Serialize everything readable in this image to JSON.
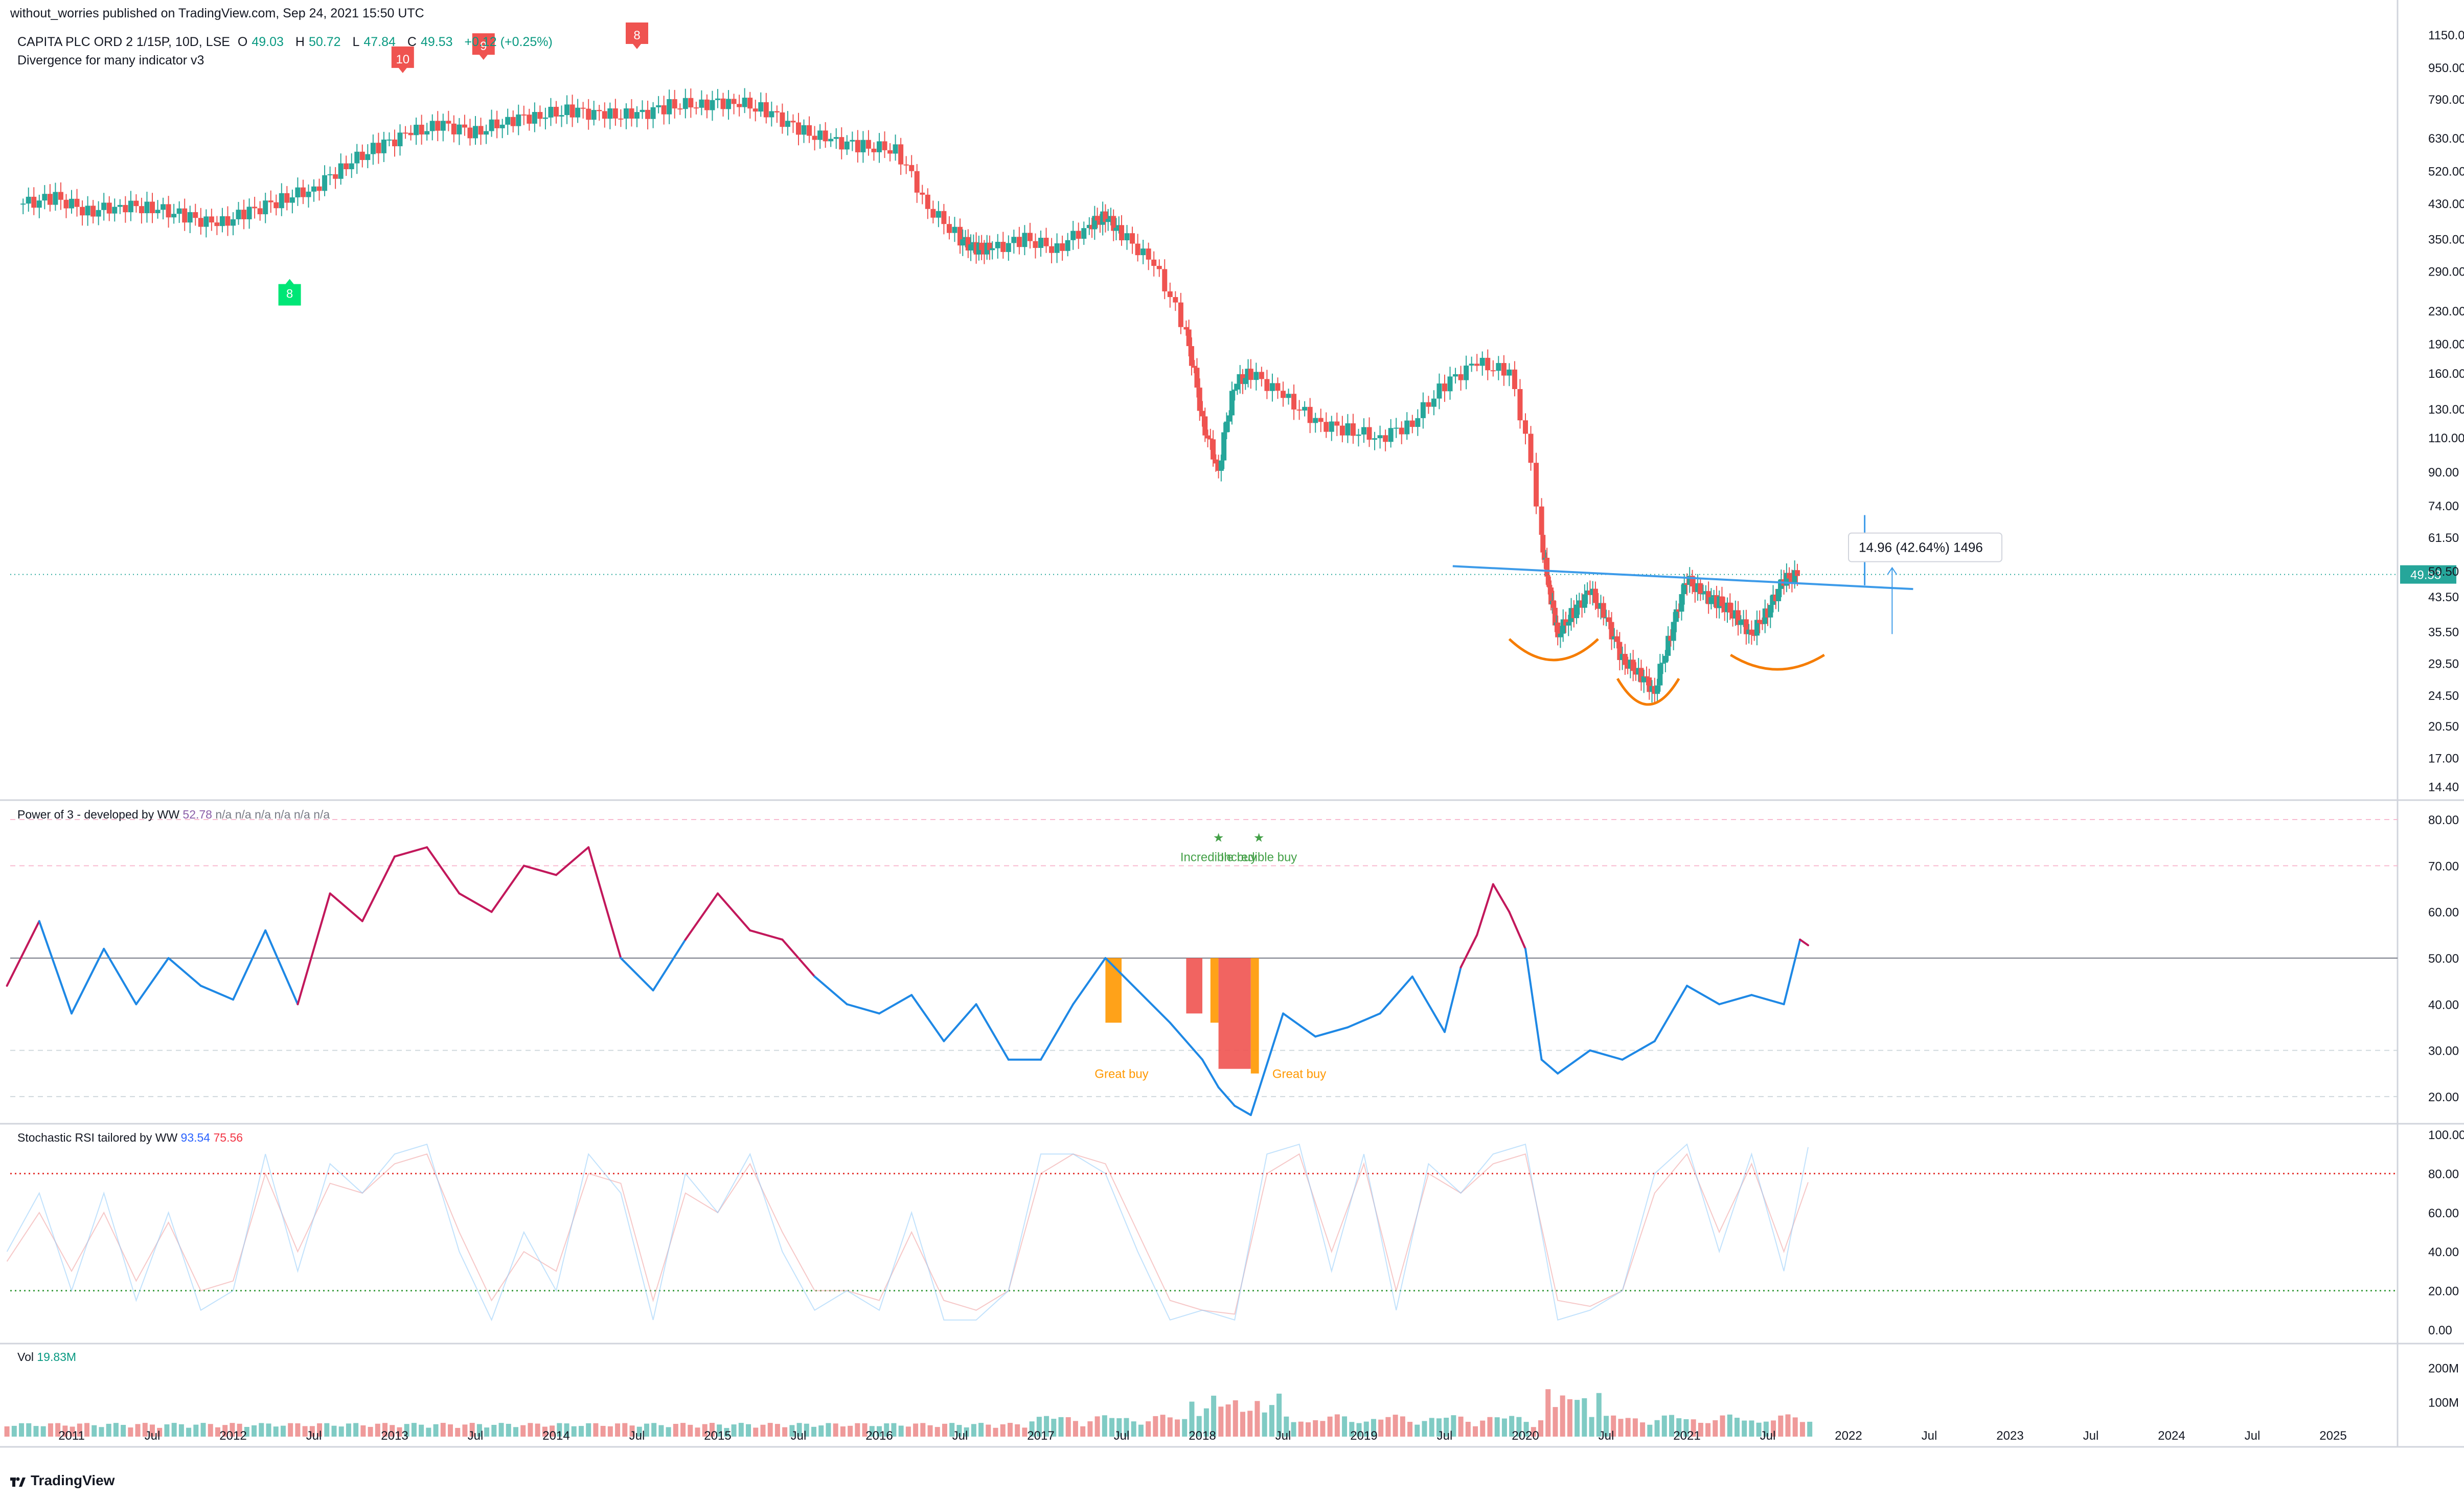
{
  "header": {
    "published": "without_worries published on TradingView.com, Sep 24, 2021 15:50 UTC",
    "symbol": "CAPITA PLC ORD 2 1/15P, 10D, LSE",
    "ohlc": {
      "o_label": "O",
      "o": "49.03",
      "h_label": "H",
      "h": "50.72",
      "l_label": "L",
      "l": "47.84",
      "c_label": "C",
      "c": "49.53",
      "change": "+0.12 (+0.25%)"
    },
    "indicator": "Divergence for many indicator v3"
  },
  "colors": {
    "up": "#26a69a",
    "down": "#ef5350",
    "price_line": "#3d9be9",
    "orange": "#f57c00",
    "great_buy": "#ff9800",
    "incredible_buy": "#43a047",
    "rsi_blue": "#1e88e5",
    "rsi_red": "#c0392b"
  },
  "chart_data": [
    {
      "type": "candlestick",
      "pane": "price",
      "scale": "log",
      "x_axis": [
        "2011",
        "Jul",
        "2012",
        "Jul",
        "2013",
        "Jul",
        "2014",
        "Jul",
        "2015",
        "Jul",
        "2016",
        "Jul",
        "2017",
        "Jul",
        "2018",
        "Jul",
        "2019",
        "Jul",
        "2020",
        "Jul",
        "2021",
        "Jul",
        "2022",
        "Jul",
        "2023",
        "Jul",
        "2024",
        "Jul",
        "2025"
      ],
      "y_ticks": [
        "1150.00",
        "950.00",
        "790.00",
        "630.00",
        "520.00",
        "430.00",
        "350.00",
        "290.00",
        "230.00",
        "190.00",
        "160.00",
        "130.00",
        "110.00",
        "90.00",
        "74.00",
        "61.50",
        "50.50",
        "43.50",
        "35.50",
        "29.50",
        "24.50",
        "20.50",
        "17.00",
        "14.40"
      ],
      "ylim": [
        13.5,
        1250
      ],
      "last_price_label": "49.53",
      "x": [
        2010.7,
        2010.9,
        2011.1,
        2011.3,
        2011.5,
        2011.7,
        2011.9,
        2012.1,
        2012.3,
        2012.5,
        2012.7,
        2012.9,
        2013.1,
        2013.3,
        2013.5,
        2013.7,
        2013.9,
        2014.1,
        2014.3,
        2014.5,
        2014.7,
        2014.9,
        2015.1,
        2015.3,
        2015.5,
        2015.7,
        2015.9,
        2016.1,
        2016.3,
        2016.5,
        2016.6,
        2016.7,
        2016.9,
        2017.1,
        2017.3,
        2017.4,
        2017.5,
        2017.7,
        2017.9,
        2018.0,
        2018.1,
        2018.2,
        2018.3,
        2018.5,
        2018.7,
        2018.9,
        2019.1,
        2019.3,
        2019.5,
        2019.7,
        2019.9,
        2020.1,
        2020.15,
        2020.2,
        2020.3,
        2020.4,
        2020.5,
        2020.6,
        2020.7,
        2020.8,
        2020.9,
        2021.0,
        2021.1,
        2021.2,
        2021.3,
        2021.4,
        2021.5,
        2021.6,
        2021.7
      ],
      "close": [
        430,
        445,
        410,
        425,
        420,
        400,
        380,
        410,
        440,
        470,
        540,
        600,
        650,
        680,
        650,
        700,
        720,
        740,
        720,
        720,
        760,
        770,
        780,
        740,
        660,
        620,
        600,
        590,
        420,
        350,
        330,
        330,
        350,
        330,
        380,
        400,
        360,
        300,
        200,
        120,
        90,
        150,
        160,
        140,
        120,
        115,
        110,
        120,
        150,
        170,
        160,
        60,
        45,
        35,
        40,
        45,
        38,
        30,
        28,
        25,
        35,
        48,
        44,
        42,
        39,
        35,
        40,
        48,
        49.53
      ]
    },
    {
      "type": "line",
      "pane": "power_of_3",
      "title": "Power of 3 - developed by WW",
      "y_ticks": [
        "80.00",
        "70.00",
        "60.00",
        "50.00",
        "40.00",
        "30.00",
        "20.00"
      ],
      "ylim": [
        15,
        82
      ],
      "reference_line": 50,
      "dashed_lines": [
        80,
        70,
        30,
        20
      ],
      "current_value": "52.78",
      "na_values": [
        "n/a",
        "n/a",
        "n/a",
        "n/a",
        "n/a",
        "n/a"
      ],
      "annotations": [
        {
          "text": "Great buy",
          "x": 2017.5,
          "y": 24
        },
        {
          "text": "Great buy",
          "x": 2018.6,
          "y": 24
        },
        {
          "text": "Incredible buy",
          "x": 2018.1,
          "y": 71
        },
        {
          "text": "Incredible buy",
          "x": 2018.35,
          "y": 71
        }
      ],
      "x": [
        2010.6,
        2010.8,
        2011.0,
        2011.2,
        2011.4,
        2011.6,
        2011.8,
        2012.0,
        2012.2,
        2012.4,
        2012.6,
        2012.8,
        2013.0,
        2013.2,
        2013.4,
        2013.6,
        2013.8,
        2014.0,
        2014.2,
        2014.4,
        2014.6,
        2014.8,
        2015.0,
        2015.2,
        2015.4,
        2015.6,
        2015.8,
        2016.0,
        2016.2,
        2016.4,
        2016.6,
        2016.8,
        2017.0,
        2017.2,
        2017.4,
        2017.6,
        2017.8,
        2018.0,
        2018.1,
        2018.2,
        2018.3,
        2018.5,
        2018.7,
        2018.9,
        2019.1,
        2019.3,
        2019.5,
        2019.6,
        2019.7,
        2019.8,
        2019.9,
        2020.0,
        2020.1,
        2020.2,
        2020.4,
        2020.6,
        2020.8,
        2021.0,
        2021.2,
        2021.4,
        2021.6,
        2021.7,
        2021.75
      ],
      "values": [
        44,
        58,
        38,
        52,
        40,
        50,
        44,
        41,
        56,
        40,
        64,
        58,
        72,
        74,
        64,
        60,
        70,
        68,
        74,
        50,
        43,
        54,
        64,
        56,
        54,
        46,
        40,
        38,
        42,
        32,
        40,
        28,
        28,
        40,
        50,
        43,
        36,
        28,
        22,
        18,
        16,
        38,
        33,
        35,
        38,
        46,
        34,
        48,
        55,
        66,
        60,
        52,
        28,
        25,
        30,
        28,
        32,
        44,
        40,
        42,
        40,
        54,
        52.78
      ]
    },
    {
      "type": "line",
      "pane": "stochastic_rsi",
      "title": "Stochastic RSI tailored by WW",
      "y_ticks": [
        "100.00",
        "80.00",
        "60.00",
        "40.00",
        "20.00",
        "0.00"
      ],
      "ylim": [
        -5,
        105
      ],
      "overbought": 80,
      "oversold": 20,
      "current_k": "93.54",
      "current_d": "75.56",
      "x": [
        2010.6,
        2010.8,
        2011.0,
        2011.2,
        2011.4,
        2011.6,
        2011.8,
        2012.0,
        2012.2,
        2012.4,
        2012.6,
        2012.8,
        2013.0,
        2013.2,
        2013.4,
        2013.6,
        2013.8,
        2014.0,
        2014.2,
        2014.4,
        2014.6,
        2014.8,
        2015.0,
        2015.2,
        2015.4,
        2015.6,
        2015.8,
        2016.0,
        2016.2,
        2016.4,
        2016.6,
        2016.8,
        2017.0,
        2017.2,
        2017.4,
        2017.6,
        2017.8,
        2018.0,
        2018.2,
        2018.4,
        2018.6,
        2018.8,
        2019.0,
        2019.2,
        2019.4,
        2019.6,
        2019.8,
        2020.0,
        2020.2,
        2020.4,
        2020.6,
        2020.8,
        2021.0,
        2021.2,
        2021.4,
        2021.6,
        2021.75
      ],
      "k": [
        40,
        70,
        20,
        70,
        15,
        60,
        10,
        20,
        90,
        30,
        85,
        70,
        90,
        95,
        40,
        5,
        50,
        20,
        90,
        70,
        5,
        80,
        60,
        90,
        40,
        10,
        20,
        10,
        60,
        5,
        5,
        20,
        90,
        90,
        80,
        40,
        5,
        10,
        5,
        90,
        95,
        30,
        90,
        10,
        85,
        70,
        90,
        95,
        5,
        10,
        20,
        80,
        95,
        40,
        90,
        30,
        93.54
      ],
      "d": [
        35,
        60,
        30,
        60,
        25,
        55,
        20,
        25,
        80,
        40,
        75,
        70,
        85,
        90,
        50,
        15,
        40,
        30,
        80,
        75,
        15,
        70,
        60,
        85,
        50,
        20,
        20,
        15,
        50,
        15,
        10,
        20,
        80,
        90,
        85,
        50,
        15,
        10,
        8,
        80,
        90,
        40,
        85,
        20,
        80,
        70,
        85,
        90,
        15,
        12,
        20,
        70,
        90,
        50,
        85,
        40,
        75.56
      ]
    },
    {
      "type": "bar",
      "pane": "volume",
      "title": "Vol",
      "current_value": "19.83M",
      "y_ticks": [
        "200M",
        "100M"
      ],
      "ylim": [
        0,
        260
      ]
    }
  ],
  "measure": {
    "label": "14.96 (42.64%) 1496"
  },
  "watermark": {
    "text": "TradingView"
  },
  "markers": [
    {
      "label": "10",
      "color": "#ef5350"
    },
    {
      "label": "9",
      "color": "#ef5350"
    },
    {
      "label": "8",
      "color": "#ef5350"
    },
    {
      "label": "8",
      "color": "#00e676"
    }
  ]
}
